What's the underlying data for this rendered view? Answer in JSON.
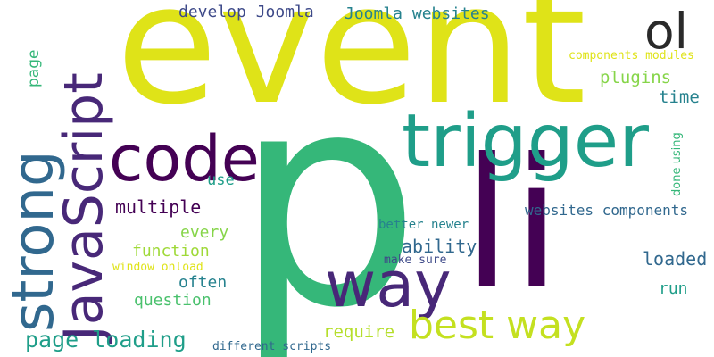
{
  "colors": {
    "background": "#ffffff",
    "yellow": "#dfe318",
    "lightgreen": "#86d549",
    "green": "#35b779",
    "teal": "#1f9e89",
    "blueteal": "#26828e",
    "blue": "#31688e",
    "indigo": "#3e4a89",
    "purple": "#482878",
    "darkpurple": "#440154"
  },
  "words": [
    {
      "text": "p",
      "color": "#35b779"
    },
    {
      "text": "event",
      "color": "#dfe318"
    },
    {
      "text": "li",
      "color": "#440154"
    },
    {
      "text": "trigger",
      "color": "#1f9e89"
    },
    {
      "text": "JavaScript",
      "color": "#482878"
    },
    {
      "text": "strong",
      "color": "#31688e"
    },
    {
      "text": "code",
      "color": "#440154"
    },
    {
      "text": "way",
      "color": "#482878"
    },
    {
      "text": "best way",
      "color": "#c4e020"
    },
    {
      "text": "ol",
      "color": "#2a2a2a"
    },
    {
      "text": "page loading",
      "color": "#1f9e89"
    },
    {
      "text": "multiple",
      "color": "#440154"
    },
    {
      "text": "function",
      "color": "#9fd938"
    },
    {
      "text": "every",
      "color": "#86d549"
    },
    {
      "text": "often",
      "color": "#26828e"
    },
    {
      "text": "question",
      "color": "#4ac16d"
    },
    {
      "text": "ability",
      "color": "#31688e"
    },
    {
      "text": "require",
      "color": "#b5de2b"
    },
    {
      "text": "loaded",
      "color": "#31688e"
    },
    {
      "text": "run",
      "color": "#1f9e89"
    },
    {
      "text": "websites components",
      "color": "#31688e"
    },
    {
      "text": "plugins",
      "color": "#86d549"
    },
    {
      "text": "time",
      "color": "#26828e"
    },
    {
      "text": "develop Joomla",
      "color": "#3e4a89"
    },
    {
      "text": "Joomla websites",
      "color": "#26828e"
    },
    {
      "text": "components modules",
      "color": "#dfe318"
    },
    {
      "text": "done using",
      "color": "#35b779"
    },
    {
      "text": "page",
      "color": "#35b779"
    },
    {
      "text": "use",
      "color": "#1f9e89"
    },
    {
      "text": "better newer",
      "color": "#26828e"
    },
    {
      "text": "make sure",
      "color": "#3e4a89"
    },
    {
      "text": "window onload",
      "color": "#dfe318"
    },
    {
      "text": "different scripts",
      "color": "#31688e"
    }
  ]
}
